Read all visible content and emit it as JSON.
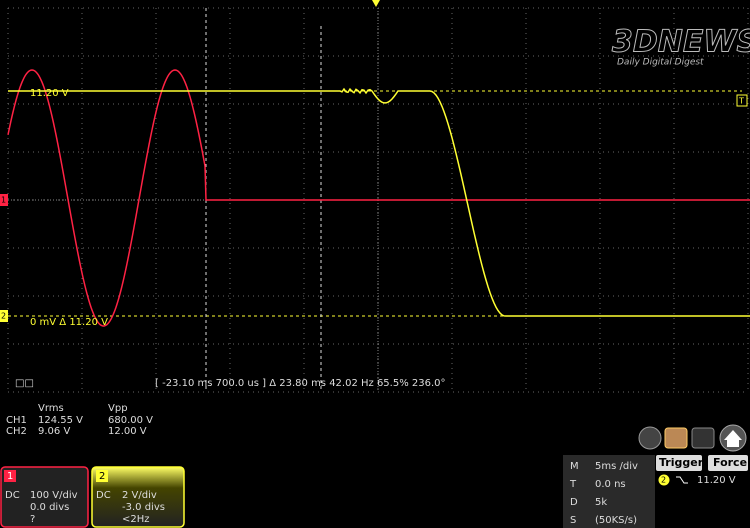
{
  "logo": {
    "brand": "3DNEWS",
    "tagline": "Daily Digital Digest"
  },
  "screen": {
    "ch2_level": "11.20 V",
    "ch2_ground": "0 mV  Δ 11.20 V",
    "cursor_icon": "□□",
    "cursor_readout": "[ -23.10 ms  700.0 us ]  Δ 23.80 ms   42.02 Hz    65.5%    236.0°",
    "ch1_marker": "1",
    "ch2_marker": "2",
    "trigger_marker": "T"
  },
  "measurements": {
    "headers": [
      "Vrms",
      "Vpp"
    ],
    "rows": [
      [
        "CH1",
        "124.55 V",
        "680.00 V"
      ],
      [
        "CH2",
        "9.06 V",
        "12.00 V"
      ]
    ]
  },
  "channels": [
    {
      "number": "1",
      "coupling": "DC",
      "scale": "100 V/div",
      "offset": "0.0 divs",
      "freq": "?"
    },
    {
      "number": "2",
      "coupling": "DC",
      "scale": "2 V/div",
      "offset": "-3.0 divs",
      "freq": "<2Hz"
    }
  ],
  "timebase": {
    "rows": [
      [
        "M",
        "5ms /div"
      ],
      [
        "T",
        "0.0 ns"
      ],
      [
        "D",
        "5k"
      ],
      [
        "S",
        "(50KS/s)"
      ]
    ]
  },
  "trigger": {
    "button": "Trigger",
    "force": "Force",
    "source": "2",
    "level": "11.20 V"
  }
}
